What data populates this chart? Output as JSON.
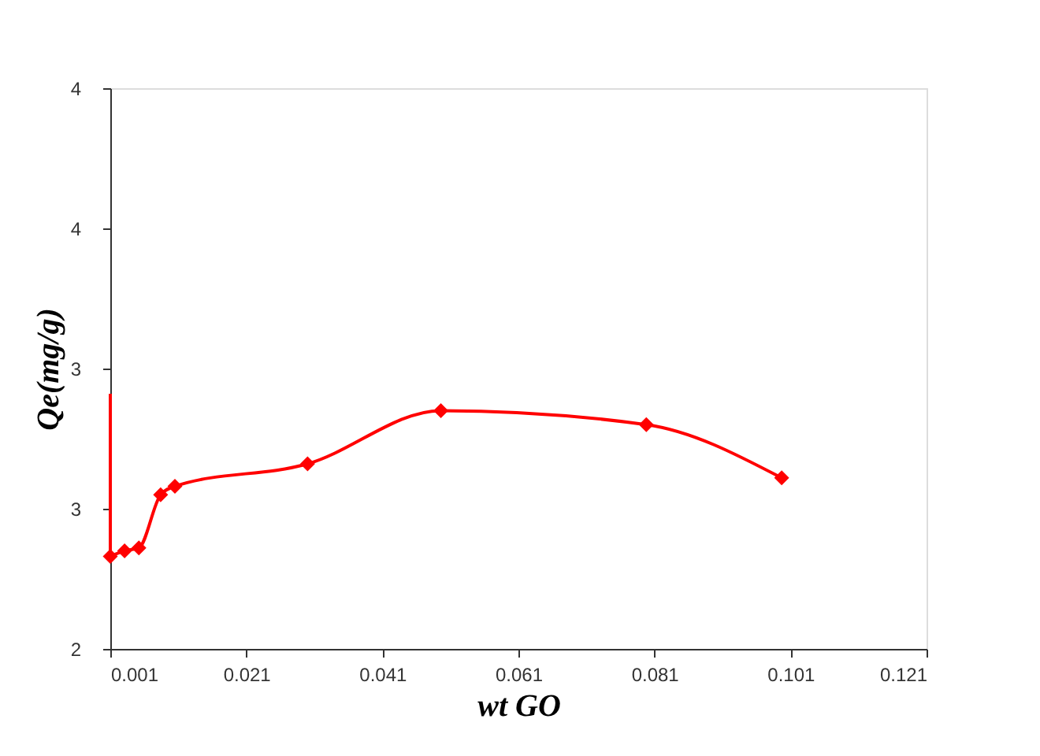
{
  "chart_data": {
    "type": "line",
    "xlabel": "wt GO",
    "ylabel": "Qe(mg/g)",
    "xlim": [
      0.001,
      0.121
    ],
    "xticks": [
      0.001,
      0.021,
      0.041,
      0.061,
      0.081,
      0.101,
      0.121
    ],
    "ylim": [
      2,
      4
    ],
    "yticks": [
      2,
      {
        "value": 2.5,
        "label": "3"
      },
      3,
      {
        "value": 3.5,
        "label": "4"
      },
      4
    ],
    "grid": false,
    "marker": "diamond",
    "line_style": "solid",
    "series": [
      {
        "color": "#ff0000",
        "x": [
          0.001,
          0.0031,
          0.0052,
          0.0084,
          0.0105,
          0.03,
          0.0496,
          0.0798,
          0.0997
        ],
        "values": [
          2.33,
          2.35,
          2.36,
          2.55,
          2.58,
          2.66,
          2.85,
          2.8,
          2.61
        ]
      },
      {
        "color": "#ff0000",
        "marker": "none",
        "x": [
          0.001,
          0.001
        ],
        "values": [
          2.33,
          2.91
        ]
      }
    ]
  }
}
